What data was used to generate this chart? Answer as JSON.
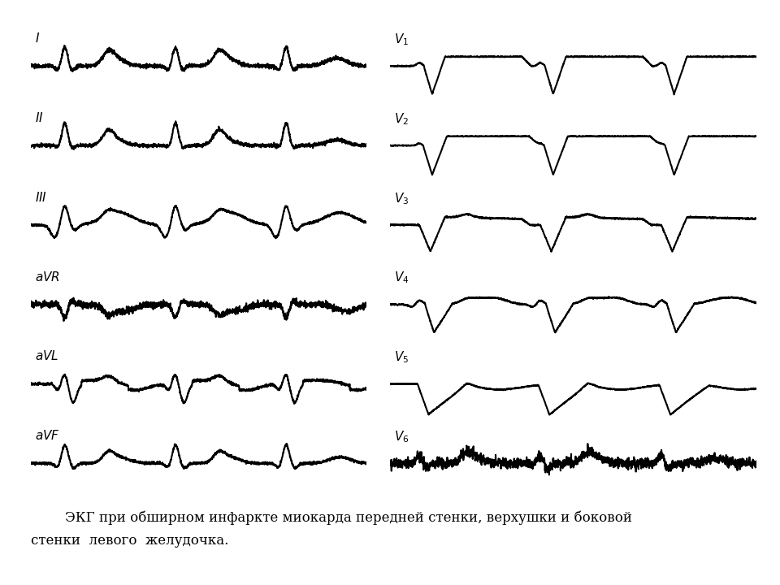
{
  "bg_color": "#ffffff",
  "line_color": "#000000",
  "caption_line1": "        ЭКГ при обширном инфаркте миокарда передней стенки, верхушки и боковой",
  "caption_line2": "стенки  левого  желудочка.",
  "label_fontsize": 11,
  "caption_fontsize": 12,
  "lw": 1.5
}
